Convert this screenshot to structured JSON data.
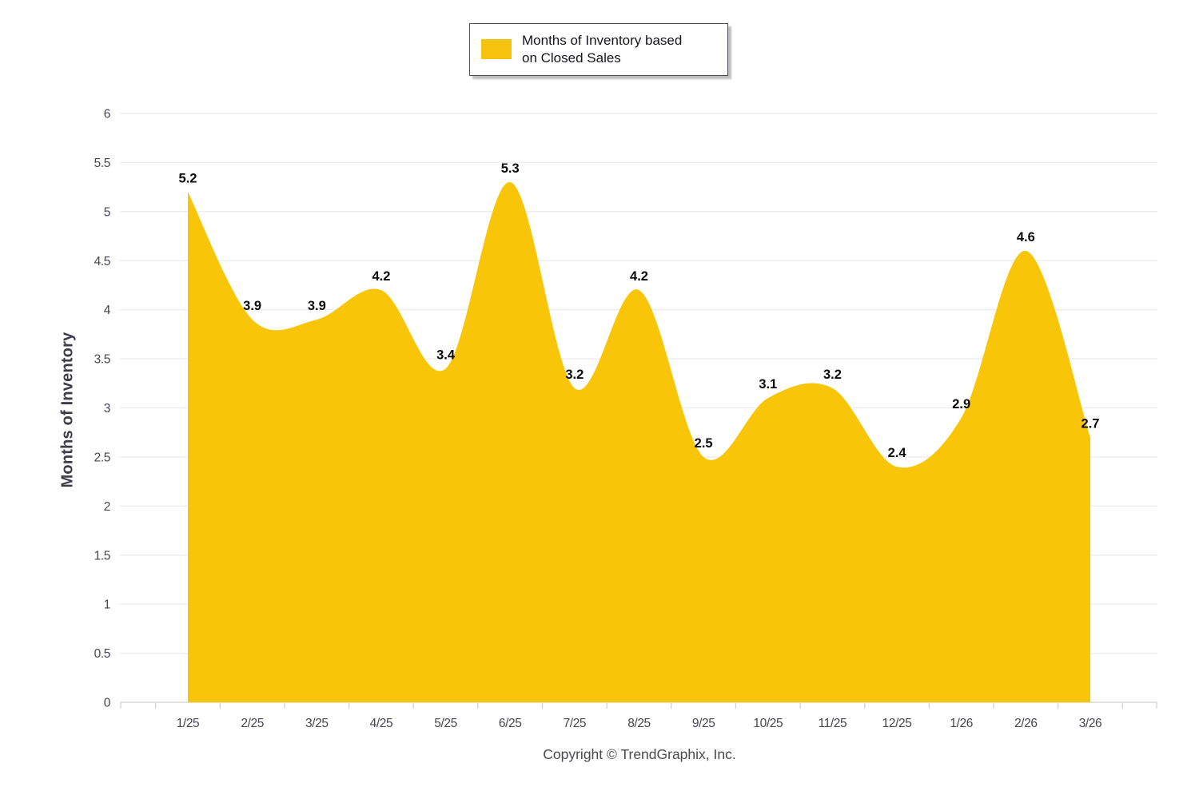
{
  "legend": {
    "series_label_line1": "Months of Inventory based",
    "series_label_line2": "on Closed Sales"
  },
  "y_axis": {
    "title": "Months of Inventory"
  },
  "footer": {
    "copyright": "Copyright © TrendGraphix, Inc."
  },
  "colors": {
    "area_fill": "#F8C508",
    "grid_line": "#ededed",
    "axis_line": "#d9d9d9",
    "tick_mark": "#cfcfcf",
    "tick_label": "#45454f",
    "data_label": "#0a0a0a",
    "legend_swatch": "#F5C20D"
  },
  "chart_data": {
    "type": "area",
    "title": "",
    "categories": [
      "1/25",
      "2/25",
      "3/25",
      "4/25",
      "5/25",
      "6/25",
      "7/25",
      "8/25",
      "9/25",
      "10/25",
      "11/25",
      "12/25",
      "1/26",
      "2/26",
      "3/26"
    ],
    "series": [
      {
        "name": "Months of Inventory based on Closed Sales",
        "values": [
          5.2,
          3.9,
          3.9,
          4.2,
          3.4,
          5.3,
          3.2,
          4.2,
          2.5,
          3.1,
          3.2,
          2.4,
          2.9,
          4.6,
          2.7
        ]
      }
    ],
    "xlabel": "",
    "ylabel": "Months of Inventory",
    "ylim": [
      0,
      6
    ],
    "ytick_step": 0.5,
    "grid": "horizontal",
    "legend_position": "top-center",
    "data_labels": true,
    "smoothing": "spline"
  }
}
